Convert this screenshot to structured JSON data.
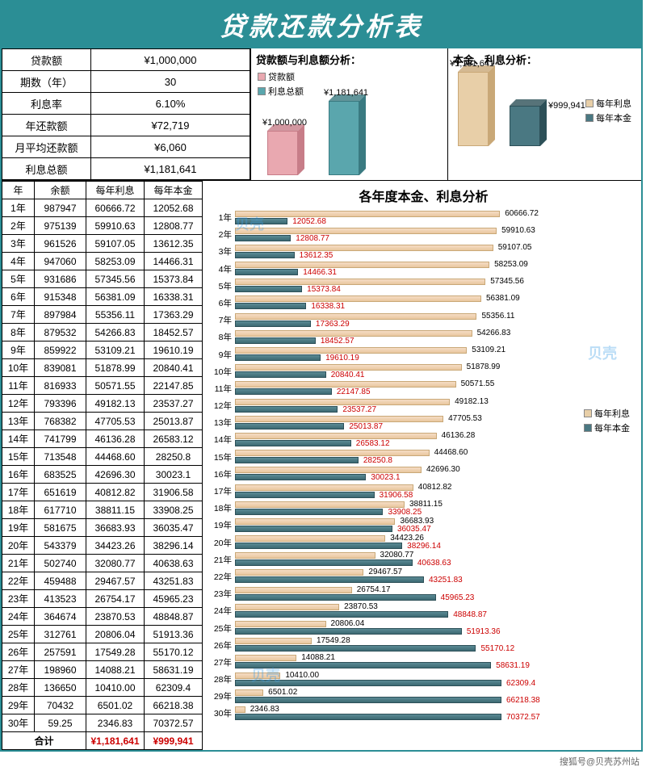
{
  "title": "贷款还款分析表",
  "summary": {
    "rows": [
      {
        "label": "贷款额",
        "value": "¥1,000,000"
      },
      {
        "label": "期数（年）",
        "value": "30"
      },
      {
        "label": "利息率",
        "value": "6.10%"
      },
      {
        "label": "年还款额",
        "value": "¥72,719"
      },
      {
        "label": "月平均还款额",
        "value": "¥6,060"
      },
      {
        "label": "利息总额",
        "value": "¥1,181,641"
      }
    ]
  },
  "chart1": {
    "title": "贷款额与利息额分析：",
    "legend": [
      {
        "label": "贷款额",
        "color": "#e9a8b0"
      },
      {
        "label": "利息总额",
        "color": "#5aa6ad"
      }
    ],
    "bars": [
      {
        "label": "¥1,000,000",
        "height": 55,
        "color": "#e9a8b0",
        "shade": "#c77d88"
      },
      {
        "label": "¥1,181,641",
        "height": 92,
        "color": "#5aa6ad",
        "shade": "#3a7a81"
      }
    ]
  },
  "chart2": {
    "title": "本金、利息分析：",
    "legend": [
      {
        "label": "每年利息",
        "color": "#e8cfa8"
      },
      {
        "label": "每年本金",
        "color": "#4a7882"
      }
    ],
    "bars": [
      {
        "label": "¥1,181,641",
        "height": 92,
        "color": "#e8cfa8",
        "shade": "#c9a877"
      },
      {
        "label": "¥999,941",
        "height": 50,
        "color": "#4a7882",
        "shade": "#2d5058"
      }
    ]
  },
  "amort": {
    "headers": [
      "年",
      "余额",
      "每年利息",
      "每年本金"
    ],
    "rows": [
      [
        "1年",
        "987947",
        "60666.72",
        "12052.68"
      ],
      [
        "2年",
        "975139",
        "59910.63",
        "12808.77"
      ],
      [
        "3年",
        "961526",
        "59107.05",
        "13612.35"
      ],
      [
        "4年",
        "947060",
        "58253.09",
        "14466.31"
      ],
      [
        "5年",
        "931686",
        "57345.56",
        "15373.84"
      ],
      [
        "6年",
        "915348",
        "56381.09",
        "16338.31"
      ],
      [
        "7年",
        "897984",
        "55356.11",
        "17363.29"
      ],
      [
        "8年",
        "879532",
        "54266.83",
        "18452.57"
      ],
      [
        "9年",
        "859922",
        "53109.21",
        "19610.19"
      ],
      [
        "10年",
        "839081",
        "51878.99",
        "20840.41"
      ],
      [
        "11年",
        "816933",
        "50571.55",
        "22147.85"
      ],
      [
        "12年",
        "793396",
        "49182.13",
        "23537.27"
      ],
      [
        "13年",
        "768382",
        "47705.53",
        "25013.87"
      ],
      [
        "14年",
        "741799",
        "46136.28",
        "26583.12"
      ],
      [
        "15年",
        "713548",
        "44468.60",
        "28250.8"
      ],
      [
        "16年",
        "683525",
        "42696.30",
        "30023.1"
      ],
      [
        "17年",
        "651619",
        "40812.82",
        "31906.58"
      ],
      [
        "18年",
        "617710",
        "38811.15",
        "33908.25"
      ],
      [
        "19年",
        "581675",
        "36683.93",
        "36035.47"
      ],
      [
        "20年",
        "543379",
        "34423.26",
        "38296.14"
      ],
      [
        "21年",
        "502740",
        "32080.77",
        "40638.63"
      ],
      [
        "22年",
        "459488",
        "29467.57",
        "43251.83"
      ],
      [
        "23年",
        "413523",
        "26754.17",
        "45965.23"
      ],
      [
        "24年",
        "364674",
        "23870.53",
        "48848.87"
      ],
      [
        "25年",
        "312761",
        "20806.04",
        "51913.36"
      ],
      [
        "26年",
        "257591",
        "17549.28",
        "55170.12"
      ],
      [
        "27年",
        "198960",
        "14088.21",
        "58631.19"
      ],
      [
        "28年",
        "136650",
        "10410.00",
        "62309.4"
      ],
      [
        "29年",
        "70432",
        "6501.02",
        "66218.38"
      ],
      [
        "30年",
        "59.25",
        "2346.83",
        "70372.57"
      ]
    ],
    "total": {
      "label": "合计",
      "interest": "¥1,181,641",
      "principal": "¥999,941"
    }
  },
  "hchart": {
    "title": "各年度本金、利息分析",
    "max": 61000,
    "barAreaWidth": 330,
    "legend": [
      {
        "label": "每年利息",
        "color": "#e8cfa8"
      },
      {
        "label": "每年本金",
        "color": "#4a7882"
      }
    ]
  },
  "footer": "搜狐号@贝壳苏州站",
  "watermark": "贝壳"
}
